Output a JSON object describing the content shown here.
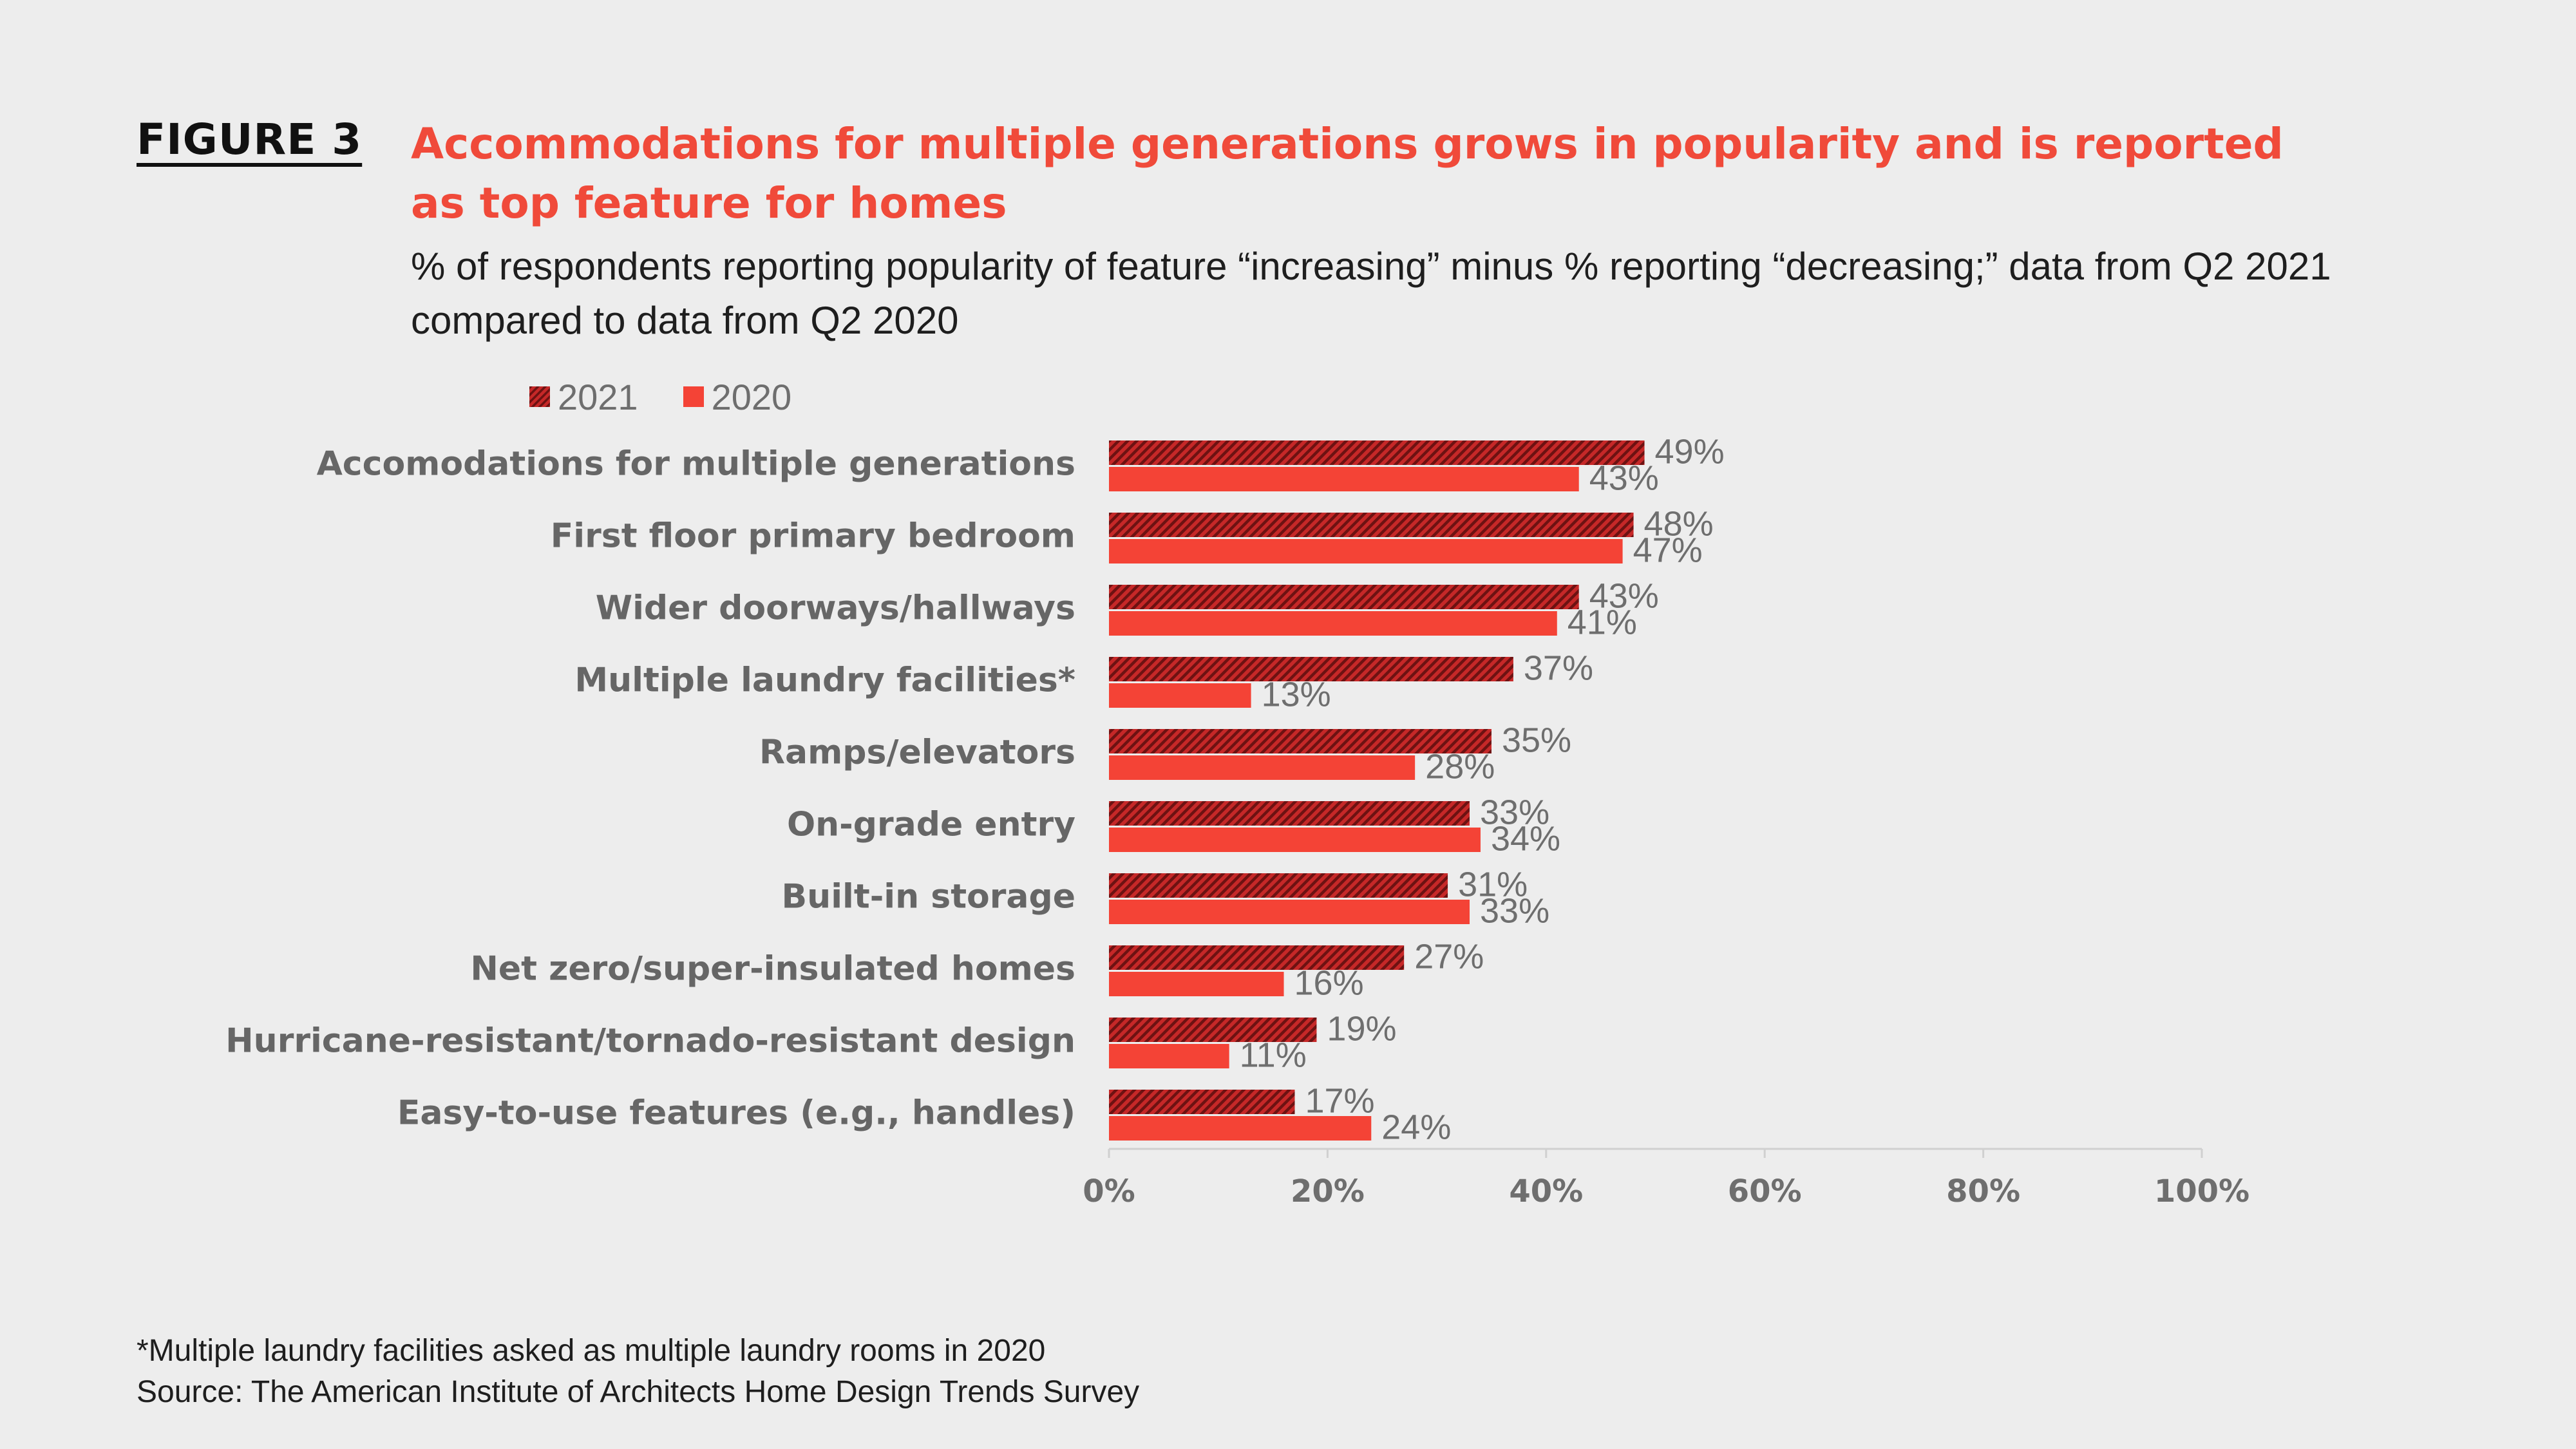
{
  "figure_label": "FIGURE 3",
  "title": "Accommodations for multiple generations grows in popularity and is reported as top feature for homes",
  "subtitle": "% of respondents reporting popularity of feature “increasing” minus % reporting “decreasing;” data from Q2 2021 compared to data from Q2 2020",
  "footnotes": [
    "*Multiple laundry facilities asked as multiple laundry rooms in 2020",
    "Source: The American Institute of Architects Home Design Trends Survey"
  ],
  "colors": {
    "accent_red": "#f04a3a",
    "bar_2020": "#f44336",
    "bar_2021_base": "#c62828",
    "bar_2021_stripe": "#6d1212"
  },
  "chart_data": {
    "type": "bar",
    "orientation": "horizontal",
    "categories": [
      "Accomodations for multiple generations",
      "First floor primary bedroom",
      "Wider doorways/hallways",
      "Multiple laundry facilities*",
      "Ramps/elevators",
      "On-grade entry",
      "Built-in storage",
      "Net zero/super-insulated homes",
      "Hurricane-resistant/tornado-resistant design",
      "Easy-to-use features (e.g., handles)"
    ],
    "series": [
      {
        "name": "2021",
        "pattern": "hatched",
        "values": [
          49,
          48,
          43,
          37,
          35,
          33,
          31,
          27,
          19,
          17
        ]
      },
      {
        "name": "2020",
        "pattern": "solid",
        "values": [
          43,
          47,
          41,
          13,
          28,
          34,
          33,
          16,
          11,
          24
        ]
      }
    ],
    "value_suffix": "%",
    "xlim": [
      0,
      100
    ],
    "x_ticks": [
      "0%",
      "20%",
      "40%",
      "60%",
      "80%",
      "100%"
    ],
    "x_tick_values": [
      0,
      20,
      40,
      60,
      80,
      100
    ],
    "legend_position": "top-left",
    "grid": false
  }
}
